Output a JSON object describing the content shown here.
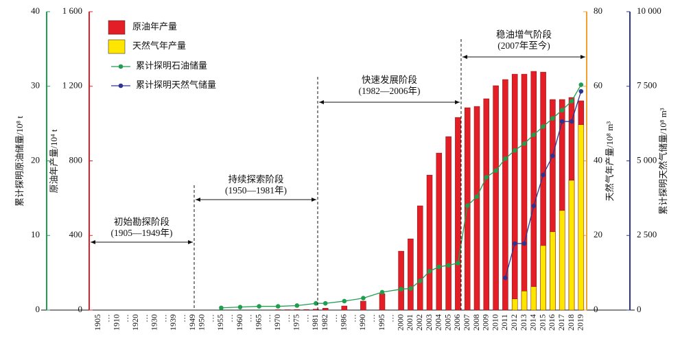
{
  "chart_data": {
    "type": "bar",
    "categories": [
      "1905",
      "…",
      "1910",
      "…",
      "1920",
      "…",
      "1930",
      "…",
      "1939",
      "…",
      "1949",
      "1950",
      "…",
      "1955",
      "…",
      "1960",
      "…",
      "1965",
      "…",
      "1970",
      "…",
      "1975",
      "…",
      "1981",
      "1982",
      "…",
      "1986",
      "…",
      "1990",
      "…",
      "1995",
      "…",
      "2000",
      "2001",
      "2002",
      "2003",
      "2004",
      "2005",
      "2006",
      "2007",
      "2008",
      "2009",
      "2010",
      "2011",
      "2012",
      "2013",
      "2014",
      "2015",
      "2016",
      "2017",
      "2018",
      "2019"
    ],
    "ylabel": "原油年产量/10⁴ t",
    "ylim": [
      0,
      1600
    ],
    "yticks": [
      0,
      400,
      800,
      {
        "value": 1200,
        "label": "1 200"
      },
      {
        "value": 1600,
        "label": "1 600"
      }
    ],
    "y2label": "天然气年产量/10⁸ m³",
    "y2lim": [
      0,
      80
    ],
    "y2ticks": [
      0,
      20,
      40,
      60,
      80
    ],
    "y3label": "累计探明原油储量/10⁸ t",
    "y3lim": [
      0,
      40
    ],
    "y3ticks": [
      0,
      10,
      20,
      30,
      40
    ],
    "y4label": "累计探明天然气储量/10⁸ m³",
    "y4lim": [
      0,
      10000
    ],
    "y4ticks": [
      0,
      {
        "value": 2500,
        "label": "2 500"
      },
      {
        "value": 5000,
        "label": "5 000"
      },
      {
        "value": 7500,
        "label": "7 500"
      },
      {
        "value": 10000,
        "label": "10 000"
      }
    ],
    "series": [
      {
        "name": "原油年产量",
        "kind": "bar",
        "axis": "y",
        "color": "#e41e26",
        "values": [
          0,
          0,
          0,
          0,
          0,
          0,
          0,
          0,
          0,
          0,
          0,
          0,
          0,
          0,
          0,
          0,
          0,
          0,
          0,
          2,
          2,
          3,
          3,
          5,
          10,
          0,
          22,
          0,
          48,
          0,
          88,
          0,
          316,
          382,
          559,
          724,
          842,
          930,
          1033,
          1085,
          1092,
          1133,
          1203,
          1236,
          1265,
          1265,
          1280,
          1276,
          1129,
          1129,
          1140,
          1122
        ]
      },
      {
        "name": "天然气年产量",
        "kind": "bar",
        "axis": "y2",
        "color": "#ffe600",
        "values": [
          null,
          null,
          null,
          null,
          null,
          null,
          null,
          null,
          null,
          null,
          null,
          null,
          null,
          null,
          null,
          null,
          null,
          null,
          null,
          null,
          null,
          null,
          null,
          null,
          null,
          null,
          null,
          null,
          null,
          null,
          null,
          null,
          null,
          null,
          null,
          null,
          null,
          null,
          null,
          null,
          null,
          null,
          null,
          null,
          3,
          5.1,
          6.3,
          17.3,
          21,
          26.7,
          34.8,
          49.7
        ]
      },
      {
        "name": "累计探明石油储量",
        "kind": "line",
        "axis": "y3",
        "color": "#1f9e4f",
        "values": [
          null,
          null,
          null,
          null,
          null,
          null,
          null,
          null,
          null,
          null,
          null,
          null,
          null,
          0.3,
          null,
          0.4,
          null,
          0.5,
          null,
          0.5,
          null,
          0.6,
          null,
          0.9,
          0.9,
          null,
          1.2,
          null,
          1.6,
          null,
          2.4,
          null,
          2.8,
          2.9,
          3.9,
          5.2,
          5.8,
          6.0,
          6.3,
          14.0,
          15.2,
          17.8,
          18.7,
          20.3,
          21.4,
          22.3,
          23.5,
          24.6,
          25.7,
          26.8,
          28.0,
          30.2
        ]
      },
      {
        "name": "累计探明天然气储量",
        "kind": "line",
        "axis": "y4",
        "color": "#2b3590",
        "values": [
          null,
          null,
          null,
          null,
          null,
          null,
          null,
          null,
          null,
          null,
          null,
          null,
          null,
          null,
          null,
          null,
          null,
          null,
          null,
          null,
          null,
          null,
          null,
          null,
          null,
          null,
          null,
          null,
          null,
          null,
          null,
          null,
          null,
          null,
          null,
          null,
          null,
          null,
          null,
          null,
          null,
          null,
          null,
          1080,
          2230,
          2230,
          3490,
          4530,
          5170,
          6320,
          6320,
          7330
        ]
      }
    ],
    "annotations": [
      {
        "label": "初始勘探阶段",
        "period": "(1905—1949年)"
      },
      {
        "label": "持续探索阶段",
        "period": "(1950—1981年)"
      },
      {
        "label": "快速发展阶段",
        "period": "(1982—2006年)"
      },
      {
        "label": "稳油增气阶段",
        "period": "(2007年至今)"
      }
    ]
  }
}
